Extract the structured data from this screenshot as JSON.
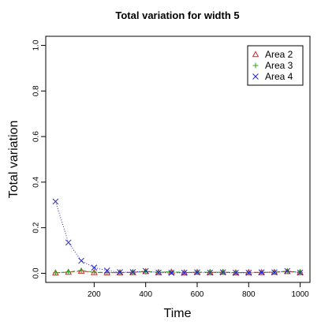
{
  "chart_data": {
    "type": "line",
    "title": "Total variation for width 5",
    "xlabel": "Time",
    "ylabel": "Total variation",
    "x": [
      50,
      100,
      150,
      200,
      250,
      300,
      350,
      400,
      450,
      500,
      550,
      600,
      650,
      700,
      750,
      800,
      850,
      900,
      950,
      1000
    ],
    "series": [
      {
        "name": "Area 2",
        "color": "#dd2222",
        "marker": "triangle",
        "dash": "6,3",
        "values": [
          0.002,
          0.005,
          0.01,
          0.004,
          0.003,
          0.003,
          0.004,
          0.008,
          0.004,
          0.006,
          0.003,
          0.005,
          0.004,
          0.005,
          0.003,
          0.004,
          0.004,
          0.005,
          0.008,
          0.004
        ]
      },
      {
        "name": "Area 3",
        "color": "#22aa22",
        "marker": "plus",
        "dash": "4,3",
        "values": [
          0.002,
          0.006,
          0.012,
          0.005,
          0.003,
          0.003,
          0.004,
          0.007,
          0.004,
          0.007,
          0.003,
          0.005,
          0.004,
          0.005,
          0.003,
          0.003,
          0.004,
          0.005,
          0.009,
          0.004
        ]
      },
      {
        "name": "Area 4",
        "color": "#2222dd",
        "marker": "cross",
        "dash": "1,2",
        "values": [
          0.315,
          0.135,
          0.055,
          0.025,
          0.012,
          0.005,
          0.005,
          0.01,
          0.003,
          0.002,
          0.002,
          0.004,
          0.003,
          0.004,
          0.002,
          0.002,
          0.004,
          0.004,
          0.01,
          0.003
        ]
      }
    ],
    "xlim": [
      12,
      1038
    ],
    "ylim": [
      -0.04,
      1.04
    ],
    "xticks": [
      200,
      400,
      600,
      800,
      1000
    ],
    "yticks": [
      {
        "value": 0,
        "label": "0.0"
      },
      {
        "value": 0.2,
        "label": "0.2"
      },
      {
        "value": 0.4,
        "label": "0.4"
      },
      {
        "value": 0.6,
        "label": "0.6"
      },
      {
        "value": 0.8,
        "label": "0.8"
      },
      {
        "value": 1,
        "label": "1.0"
      }
    ],
    "legend": "top-right"
  }
}
